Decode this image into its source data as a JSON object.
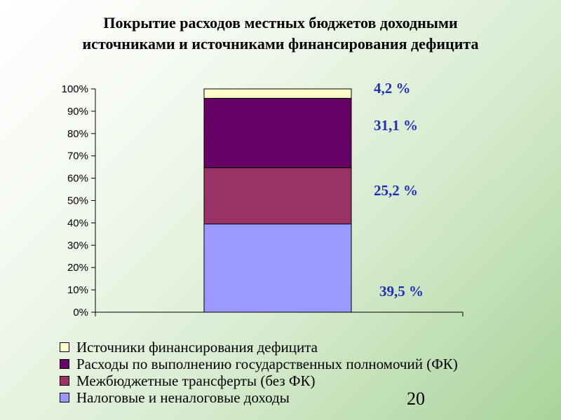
{
  "title_lines": [
    "Покрытие расходов местных бюджетов доходными",
    "источниками и источниками финансирования дефицита"
  ],
  "slide_number": "20",
  "chart_data": {
    "type": "bar",
    "stacked": true,
    "normalized_percent": true,
    "ylim": [
      0,
      100
    ],
    "yticks": [
      "0%",
      "10%",
      "20%",
      "30%",
      "40%",
      "50%",
      "60%",
      "70%",
      "80%",
      "90%",
      "100%"
    ],
    "grid": false,
    "legend_position": "bottom",
    "series": [
      {
        "name": "Налоговые и неналоговые доходы",
        "value": 39.5,
        "label": "39,5 %",
        "color": "#9999ff"
      },
      {
        "name": "Межбюджетные трансферты (без ФК)",
        "value": 25.2,
        "label": "25,2 %",
        "color": "#993366"
      },
      {
        "name": "Расходы по выполнению государственных полномочий (ФК)",
        "value": 31.1,
        "label": "31,1 %",
        "color": "#660066"
      },
      {
        "name": "Источники финансирования дефицита",
        "value": 4.2,
        "label": "4,2 %",
        "color": "#ffffcc"
      }
    ],
    "legend_order": [
      "Источники финансирования дефицита",
      "Расходы по выполнению государственных полномочий (ФК)",
      "Межбюджетные трансферты (без ФК)",
      "Налоговые и неналоговые доходы"
    ]
  }
}
